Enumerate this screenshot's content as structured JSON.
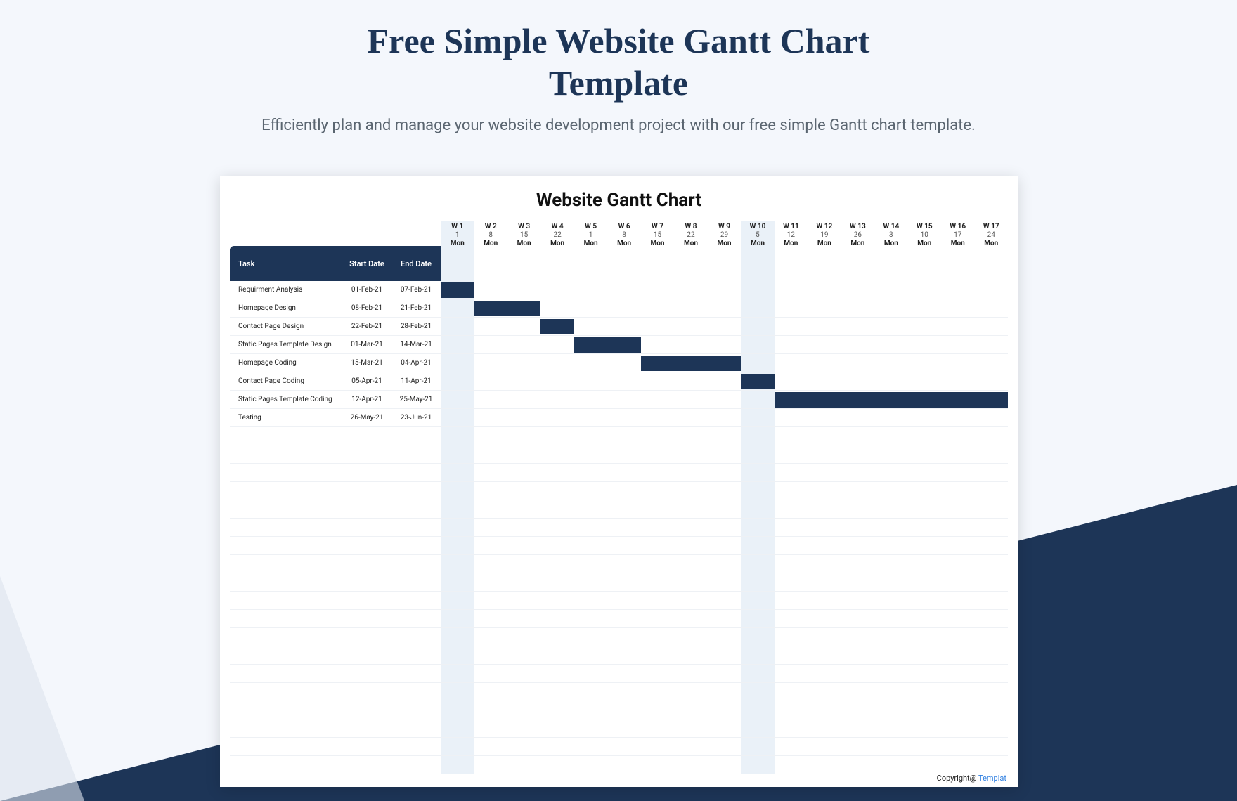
{
  "page": {
    "title": "Free Simple Website Gantt Chart Template",
    "subtitle": "Efficiently plan and manage your website development project with our free simple Gantt chart template.",
    "background_color": "#f4f7fc",
    "accent_color": "#1d3557",
    "accent_light": "#dce3ed"
  },
  "chart": {
    "type": "gantt",
    "title": "Website Gantt Chart",
    "card_bg": "#ffffff",
    "bar_color": "#1d3557",
    "header_bg": "#1d3557",
    "header_text_color": "#ffffff",
    "row_border_color": "#eef1f5",
    "shaded_col_color": "#eaf1f8",
    "columns": {
      "task_label": "Task",
      "start_label": "Start Date",
      "end_label": "End Date"
    },
    "weeks": [
      {
        "label": "W 1",
        "date": "1",
        "day": "Mon",
        "shaded": true
      },
      {
        "label": "W 2",
        "date": "8",
        "day": "Mon",
        "shaded": false
      },
      {
        "label": "W 3",
        "date": "15",
        "day": "Mon",
        "shaded": false
      },
      {
        "label": "W 4",
        "date": "22",
        "day": "Mon",
        "shaded": false
      },
      {
        "label": "W 5",
        "date": "1",
        "day": "Mon",
        "shaded": false
      },
      {
        "label": "W 6",
        "date": "8",
        "day": "Mon",
        "shaded": false
      },
      {
        "label": "W 7",
        "date": "15",
        "day": "Mon",
        "shaded": false
      },
      {
        "label": "W 8",
        "date": "22",
        "day": "Mon",
        "shaded": false
      },
      {
        "label": "W 9",
        "date": "29",
        "day": "Mon",
        "shaded": false
      },
      {
        "label": "W 10",
        "date": "5",
        "day": "Mon",
        "shaded": true
      },
      {
        "label": "W 11",
        "date": "12",
        "day": "Mon",
        "shaded": false
      },
      {
        "label": "W 12",
        "date": "19",
        "day": "Mon",
        "shaded": false
      },
      {
        "label": "W 13",
        "date": "26",
        "day": "Mon",
        "shaded": false
      },
      {
        "label": "W 14",
        "date": "3",
        "day": "Mon",
        "shaded": false
      },
      {
        "label": "W 15",
        "date": "10",
        "day": "Mon",
        "shaded": false
      },
      {
        "label": "W 16",
        "date": "17",
        "day": "Mon",
        "shaded": false
      },
      {
        "label": "W 17",
        "date": "24",
        "day": "Mon",
        "shaded": false
      }
    ],
    "tasks": [
      {
        "name": "Requirment Analysis",
        "start": "01-Feb-21",
        "end": "07-Feb-21",
        "bar_start": 0,
        "bar_span": 1
      },
      {
        "name": "Homepage Design",
        "start": "08-Feb-21",
        "end": "21-Feb-21",
        "bar_start": 1,
        "bar_span": 2
      },
      {
        "name": "Contact Page Design",
        "start": "22-Feb-21",
        "end": "28-Feb-21",
        "bar_start": 3,
        "bar_span": 1
      },
      {
        "name": "Static Pages Template Design",
        "start": "01-Mar-21",
        "end": "14-Mar-21",
        "bar_start": 4,
        "bar_span": 2
      },
      {
        "name": "Homepage Coding",
        "start": "15-Mar-21",
        "end": "04-Apr-21",
        "bar_start": 6,
        "bar_span": 3
      },
      {
        "name": "Contact Page Coding",
        "start": "05-Apr-21",
        "end": "11-Apr-21",
        "bar_start": 9,
        "bar_span": 1
      },
      {
        "name": "Static Pages Template Coding",
        "start": "12-Apr-21",
        "end": "25-May-21",
        "bar_start": 10,
        "bar_span": 7
      },
      {
        "name": "Testing",
        "start": "26-May-21",
        "end": "23-Jun-21",
        "bar_start": null,
        "bar_span": null
      }
    ],
    "empty_rows": 19,
    "copyright_label": "Copyright@",
    "copyright_link": "Templat"
  }
}
